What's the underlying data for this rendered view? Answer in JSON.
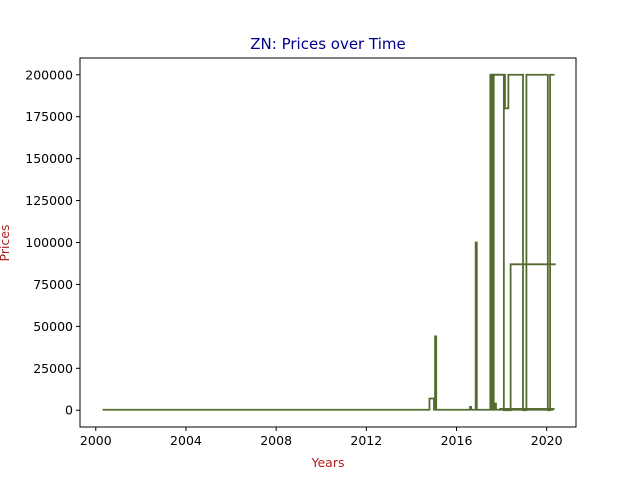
{
  "chart_data": {
    "type": "line",
    "title": "ZN: Prices over Time",
    "xlabel": "Years",
    "ylabel": "Prices",
    "xlim": [
      1999.3,
      2021.3
    ],
    "ylim": [
      -10000,
      210000
    ],
    "x_ticks": [
      2000,
      2004,
      2008,
      2012,
      2016,
      2020
    ],
    "y_ticks": [
      0,
      25000,
      50000,
      75000,
      100000,
      125000,
      150000,
      175000,
      200000
    ],
    "grid": false,
    "colors": {
      "title": "#00008b",
      "axis_label": "#b22222",
      "line": "#556b2f"
    },
    "series": [
      {
        "points": [
          [
            2000.3,
            300
          ],
          [
            2014.8,
            300
          ],
          [
            2014.8,
            7000
          ],
          [
            2015.0,
            7000
          ],
          [
            2015.0,
            300
          ],
          [
            2015.05,
            300
          ],
          [
            2015.05,
            44000
          ],
          [
            2015.1,
            44000
          ],
          [
            2015.1,
            300
          ],
          [
            2016.6,
            300
          ],
          [
            2016.6,
            2000
          ],
          [
            2016.65,
            2000
          ],
          [
            2016.65,
            300
          ],
          [
            2016.85,
            300
          ],
          [
            2016.85,
            100000
          ],
          [
            2016.9,
            100000
          ],
          [
            2016.9,
            300
          ],
          [
            2017.5,
            300
          ],
          [
            2017.5,
            200000
          ],
          [
            2017.55,
            200000
          ],
          [
            2017.55,
            300
          ],
          [
            2017.6,
            300
          ],
          [
            2017.6,
            200000
          ],
          [
            2017.65,
            200000
          ],
          [
            2017.65,
            300
          ],
          [
            2017.7,
            300
          ],
          [
            2017.7,
            4000
          ],
          [
            2017.75,
            4000
          ],
          [
            2017.75,
            300
          ],
          [
            2020.3,
            300
          ]
        ]
      },
      {
        "points": [
          [
            2017.55,
            0
          ],
          [
            2017.55,
            200000
          ],
          [
            2018.15,
            200000
          ],
          [
            2018.15,
            180000
          ],
          [
            2018.3,
            180000
          ],
          [
            2018.3,
            200000
          ],
          [
            2018.95,
            200000
          ],
          [
            2018.95,
            0
          ],
          [
            2019.1,
            0
          ],
          [
            2019.1,
            200000
          ],
          [
            2020.05,
            200000
          ],
          [
            2020.05,
            0
          ],
          [
            2020.15,
            0
          ],
          [
            2020.15,
            200000
          ],
          [
            2020.35,
            200000
          ]
        ]
      },
      {
        "points": [
          [
            2017.6,
            0
          ],
          [
            2017.6,
            200000
          ],
          [
            2018.1,
            200000
          ],
          [
            2018.1,
            0
          ],
          [
            2018.4,
            0
          ],
          [
            2018.4,
            87000
          ],
          [
            2020.4,
            87000
          ]
        ]
      },
      {
        "points": [
          [
            2017.9,
            800
          ],
          [
            2020.35,
            800
          ]
        ]
      }
    ]
  }
}
